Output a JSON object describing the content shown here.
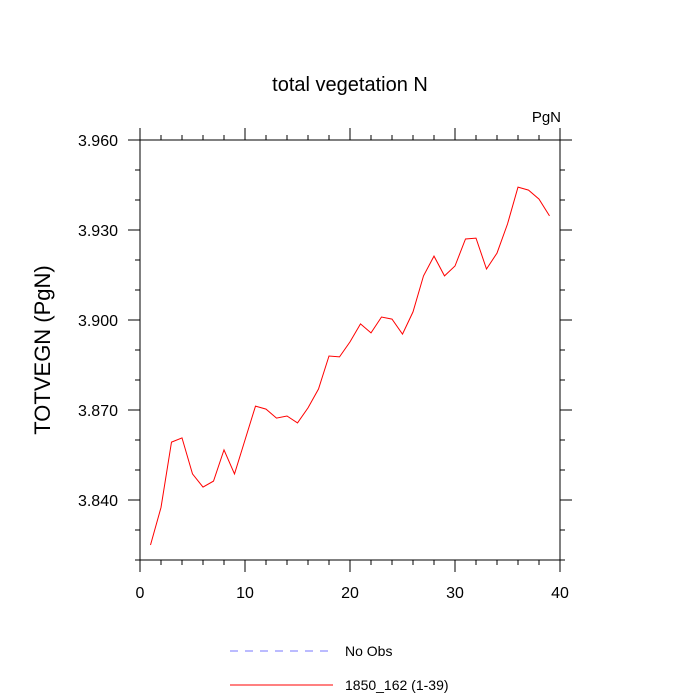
{
  "chart_data": {
    "type": "line",
    "title": "total vegetation N",
    "units_label": "PgN",
    "xlabel": "",
    "ylabel": "TOTVEGN  (PgN)",
    "xlim": [
      0,
      40
    ],
    "ylim": [
      3.82,
      3.96
    ],
    "x_ticks": [
      0,
      10,
      20,
      30,
      40
    ],
    "x_tick_labels": [
      "0",
      "10",
      "20",
      "30",
      "40"
    ],
    "y_ticks": [
      3.84,
      3.87,
      3.9,
      3.93,
      3.96
    ],
    "y_tick_labels": [
      "3.840",
      "3.870",
      "3.900",
      "3.930",
      "3.960"
    ],
    "grid": false,
    "legend_position": "bottom",
    "series": [
      {
        "name": "No Obs",
        "color": "#7777ff",
        "dashed": true,
        "x": [],
        "values": []
      },
      {
        "name": "1850_162 (1-39)",
        "color": "#ff0000",
        "dashed": false,
        "x": [
          1,
          2,
          3,
          4,
          5,
          6,
          7,
          8,
          9,
          10,
          11,
          12,
          13,
          14,
          15,
          16,
          17,
          18,
          19,
          20,
          21,
          22,
          23,
          24,
          25,
          26,
          27,
          28,
          29,
          30,
          31,
          32,
          33,
          34,
          35,
          36,
          37,
          38,
          39
        ],
        "values": [
          3.825,
          3.8375,
          3.8593,
          3.8607,
          3.8487,
          3.8443,
          3.8463,
          3.8567,
          3.8487,
          3.86,
          3.8713,
          3.8703,
          3.8673,
          3.868,
          3.8657,
          3.8707,
          3.877,
          3.888,
          3.8877,
          3.8927,
          3.8987,
          3.8957,
          3.901,
          3.9003,
          3.8953,
          3.9027,
          3.9147,
          3.9213,
          3.9147,
          3.918,
          3.927,
          3.9273,
          3.917,
          3.9223,
          3.932,
          3.9443,
          3.9433,
          3.9403,
          3.9347
        ]
      }
    ]
  }
}
